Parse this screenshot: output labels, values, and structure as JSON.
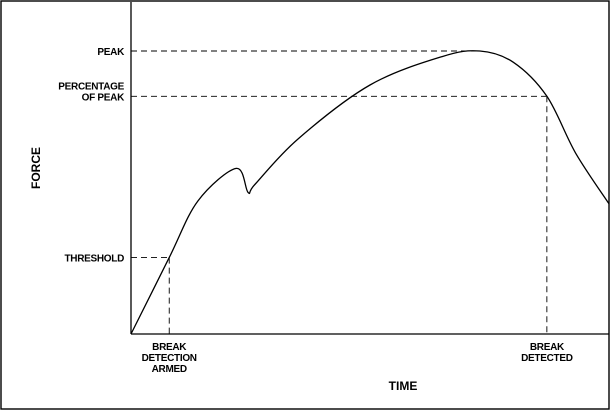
{
  "chart_data": {
    "type": "line",
    "title": "",
    "xlabel": "TIME",
    "ylabel": "FORCE",
    "grid": false,
    "legend": "none",
    "line_color": "#000000",
    "y_markers": [
      {
        "id": "peak",
        "label_lines": [
          "PEAK"
        ],
        "value": 1.0
      },
      {
        "id": "percentage",
        "label_lines": [
          "PERCENTAGE",
          "OF PEAK"
        ],
        "value": 0.84
      },
      {
        "id": "threshold",
        "label_lines": [
          "THRESHOLD"
        ],
        "value": 0.27
      }
    ],
    "x_markers": [
      {
        "id": "armed",
        "label_lines": [
          "BREAK",
          "DETECTION",
          "ARMED"
        ],
        "value": 0.08
      },
      {
        "id": "detected",
        "label_lines": [
          "BREAK",
          "DETECTED"
        ],
        "value": 0.87
      }
    ],
    "series": [
      {
        "x": [
          0,
          0.08,
          0.14,
          0.22,
          0.245,
          0.26,
          0.35,
          0.5,
          0.65,
          0.73,
          0.8,
          0.87,
          0.93,
          1.0
        ],
        "y": [
          0,
          0.27,
          0.47,
          0.585,
          0.5,
          0.53,
          0.69,
          0.88,
          0.98,
          1.0,
          0.96,
          0.84,
          0.64,
          0.46
        ]
      }
    ]
  }
}
